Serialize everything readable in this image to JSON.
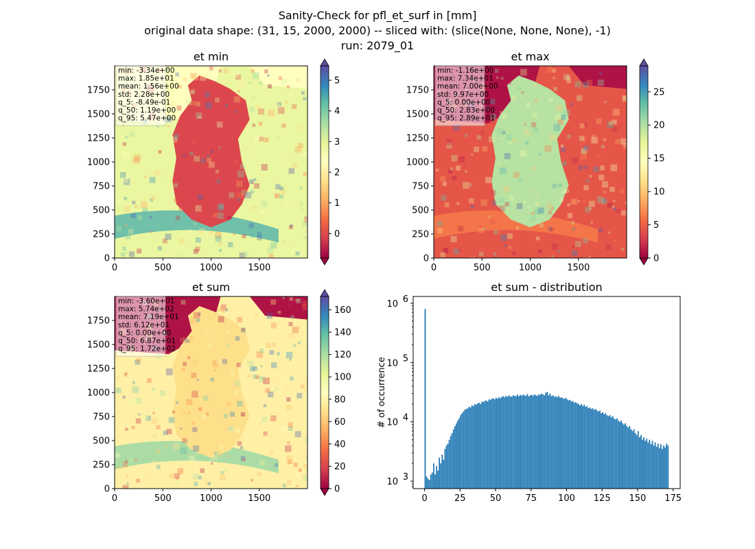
{
  "figure": {
    "title_lines": [
      "Sanity-Check for pfl_et_surf in [mm]",
      "original data shape: (31, 15, 2000, 2000) -- sliced with: (slice(None, None, None), -1)",
      "run: 2079_01"
    ],
    "colormap": "Spectral",
    "colormap_stops": [
      "#9e0142",
      "#d53e4f",
      "#f46d43",
      "#fdae61",
      "#fee08b",
      "#ffffbf",
      "#e6f598",
      "#abdda4",
      "#66c2a5",
      "#3288bd",
      "#5e4fa2"
    ],
    "hist_color": "#1f77b4"
  },
  "chart_data": [
    {
      "type": "heatmap",
      "title": "et min",
      "xlim": [
        0,
        2000
      ],
      "ylim": [
        0,
        2000
      ],
      "xticks": [
        0,
        500,
        1000,
        1500
      ],
      "yticks": [
        0,
        250,
        500,
        750,
        1000,
        1250,
        1500,
        1750
      ],
      "colorbar": {
        "vmin": -0.8,
        "vmax": 5.47,
        "ticks": [
          0,
          1,
          2,
          3,
          4,
          5
        ],
        "extend": "both"
      },
      "stats": [
        "min: -3.34e+00",
        "max: 1.85e+01",
        "mean: 1.56e+00",
        "std: 2.28e+00",
        "q_5: -8.49e-01",
        "q_50: 1.19e+00",
        "q_95: 5.47e+00"
      ]
    },
    {
      "type": "heatmap",
      "title": "et max",
      "xlim": [
        0,
        2000
      ],
      "ylim": [
        0,
        2000
      ],
      "xticks": [
        0,
        500,
        1000,
        1500
      ],
      "yticks": [
        0,
        250,
        500,
        750,
        1000,
        1250,
        1500,
        1750
      ],
      "colorbar": {
        "vmin": 0,
        "vmax": 28.9,
        "ticks": [
          0,
          5,
          10,
          15,
          20,
          25
        ],
        "extend": "both"
      },
      "stats": [
        "min: -1.16e+00",
        "max: 7.34e+01",
        "mean: 7.00e+00",
        "std: 9.97e+00",
        "q_5: 0.00e+00",
        "q_50: 2.83e+00",
        "q_95: 2.89e+01"
      ]
    },
    {
      "type": "heatmap",
      "title": "et sum",
      "xlim": [
        0,
        2000
      ],
      "ylim": [
        0,
        2000
      ],
      "xticks": [
        0,
        500,
        1000,
        1500
      ],
      "yticks": [
        0,
        250,
        500,
        750,
        1000,
        1250,
        1500,
        1750
      ],
      "colorbar": {
        "vmin": 0,
        "vmax": 172,
        "ticks": [
          0,
          20,
          40,
          60,
          80,
          100,
          120,
          140,
          160
        ],
        "extend": "both"
      },
      "stats": [
        "min: -3.60e+01",
        "max: 5.74e+02",
        "mean: 7.19e+01",
        "std: 6.12e+01",
        "q_5: 0.00e+00",
        "q_50: 6.87e+01",
        "q_95: 1.72e+02"
      ]
    },
    {
      "type": "bar",
      "title": "et sum - distribution",
      "ylabel": "# of occurrence",
      "yscale": "log",
      "xlim": [
        -8,
        180
      ],
      "ylim": [
        750,
        1300000
      ],
      "xticks": [
        0,
        25,
        50,
        75,
        100,
        125,
        150,
        175
      ],
      "yticks": [
        {
          "value": 1000,
          "base": "10",
          "exp": "3"
        },
        {
          "value": 10000,
          "base": "10",
          "exp": "4"
        },
        {
          "value": 100000,
          "base": "10",
          "exp": "5"
        },
        {
          "value": 1000000,
          "base": "10",
          "exp": "6"
        }
      ],
      "bin_width": 0.86,
      "bins": [
        [
          0,
          800000
        ],
        [
          1,
          1200
        ],
        [
          2,
          1100
        ],
        [
          3,
          1050
        ],
        [
          4,
          1300
        ],
        [
          5,
          1400
        ],
        [
          6,
          2000
        ],
        [
          7,
          1300
        ],
        [
          8,
          1800
        ],
        [
          9,
          1500
        ],
        [
          10,
          2500
        ],
        [
          11,
          2000
        ],
        [
          12,
          2800
        ],
        [
          13,
          2300
        ],
        [
          14,
          3500
        ],
        [
          15,
          4000
        ],
        [
          16,
          4300
        ],
        [
          17,
          5000
        ],
        [
          18,
          5800
        ],
        [
          19,
          6500
        ],
        [
          20,
          7500
        ],
        [
          21,
          8500
        ],
        [
          22,
          9500
        ],
        [
          23,
          10500
        ],
        [
          24,
          11500
        ],
        [
          25,
          13000
        ],
        [
          26,
          14000
        ],
        [
          27,
          15000
        ],
        [
          28,
          16000
        ],
        [
          29,
          16500
        ],
        [
          30,
          17000
        ],
        [
          31,
          18000
        ],
        [
          32,
          17500
        ],
        [
          33,
          19000
        ],
        [
          34,
          18500
        ],
        [
          35,
          20000
        ],
        [
          36,
          19500
        ],
        [
          37,
          20500
        ],
        [
          38,
          21000
        ],
        [
          39,
          20000
        ],
        [
          40,
          22000
        ],
        [
          41,
          21500
        ],
        [
          42,
          22500
        ],
        [
          43,
          23000
        ],
        [
          44,
          22000
        ],
        [
          45,
          24000
        ],
        [
          46,
          23500
        ],
        [
          47,
          24500
        ],
        [
          48,
          25000
        ],
        [
          49,
          24000
        ],
        [
          50,
          25500
        ],
        [
          51,
          24500
        ],
        [
          52,
          26000
        ],
        [
          53,
          25000
        ],
        [
          54,
          26500
        ],
        [
          55,
          27000
        ],
        [
          56,
          26000
        ],
        [
          57,
          27500
        ],
        [
          58,
          26500
        ],
        [
          59,
          28000
        ],
        [
          60,
          27000
        ],
        [
          61,
          26500
        ],
        [
          62,
          28000
        ],
        [
          63,
          27500
        ],
        [
          64,
          27000
        ],
        [
          65,
          29000
        ],
        [
          66,
          27000
        ],
        [
          67,
          28500
        ],
        [
          68,
          27500
        ],
        [
          69,
          29000
        ],
        [
          70,
          28000
        ],
        [
          71,
          27500
        ],
        [
          72,
          29500
        ],
        [
          73,
          27000
        ],
        [
          74,
          28000
        ],
        [
          75,
          28500
        ],
        [
          76,
          27500
        ],
        [
          77,
          29000
        ],
        [
          78,
          28000
        ],
        [
          79,
          27500
        ],
        [
          80,
          29000
        ],
        [
          81,
          28500
        ],
        [
          82,
          30000
        ],
        [
          83,
          29000
        ],
        [
          84,
          28000
        ],
        [
          85,
          31000
        ],
        [
          86,
          32000
        ],
        [
          87,
          28000
        ],
        [
          88,
          30000
        ],
        [
          89,
          27000
        ],
        [
          90,
          28000
        ],
        [
          91,
          26500
        ],
        [
          92,
          27000
        ],
        [
          93,
          26000
        ],
        [
          94,
          27500
        ],
        [
          95,
          25500
        ],
        [
          96,
          26000
        ],
        [
          97,
          25000
        ],
        [
          98,
          24500
        ],
        [
          99,
          25500
        ],
        [
          100,
          24000
        ],
        [
          101,
          23000
        ],
        [
          102,
          23500
        ],
        [
          103,
          22000
        ],
        [
          104,
          22500
        ],
        [
          105,
          21000
        ],
        [
          106,
          21500
        ],
        [
          107,
          20500
        ],
        [
          108,
          20000
        ],
        [
          109,
          19000
        ],
        [
          110,
          20000
        ],
        [
          111,
          18500
        ],
        [
          112,
          19500
        ],
        [
          113,
          18000
        ],
        [
          114,
          18500
        ],
        [
          115,
          17000
        ],
        [
          116,
          17500
        ],
        [
          117,
          16500
        ],
        [
          118,
          17000
        ],
        [
          119,
          16000
        ],
        [
          120,
          16500
        ],
        [
          121,
          15500
        ],
        [
          122,
          15000
        ],
        [
          123,
          15500
        ],
        [
          124,
          14000
        ],
        [
          125,
          14500
        ],
        [
          126,
          13500
        ],
        [
          127,
          14000
        ],
        [
          128,
          13000
        ],
        [
          129,
          12500
        ],
        [
          130,
          13000
        ],
        [
          131,
          12000
        ],
        [
          132,
          12500
        ],
        [
          133,
          11500
        ],
        [
          134,
          11000
        ],
        [
          135,
          11500
        ],
        [
          136,
          10500
        ],
        [
          137,
          10000
        ],
        [
          138,
          10500
        ],
        [
          139,
          9500
        ],
        [
          140,
          9000
        ],
        [
          141,
          9500
        ],
        [
          142,
          8500
        ],
        [
          143,
          8000
        ],
        [
          144,
          8500
        ],
        [
          145,
          7500
        ],
        [
          146,
          7000
        ],
        [
          147,
          7500
        ],
        [
          148,
          6500
        ],
        [
          149,
          6000
        ],
        [
          150,
          7000
        ],
        [
          151,
          5500
        ],
        [
          152,
          6000
        ],
        [
          153,
          5000
        ],
        [
          154,
          5500
        ],
        [
          155,
          4800
        ],
        [
          156,
          5200
        ],
        [
          157,
          4500
        ],
        [
          158,
          5000
        ],
        [
          159,
          4200
        ],
        [
          160,
          4800
        ],
        [
          161,
          4000
        ],
        [
          162,
          4500
        ],
        [
          163,
          3800
        ],
        [
          164,
          4300
        ],
        [
          165,
          3600
        ],
        [
          166,
          4200
        ],
        [
          167,
          3500
        ],
        [
          168,
          4000
        ],
        [
          169,
          3700
        ],
        [
          170,
          4300
        ],
        [
          171,
          4000
        ]
      ]
    }
  ]
}
